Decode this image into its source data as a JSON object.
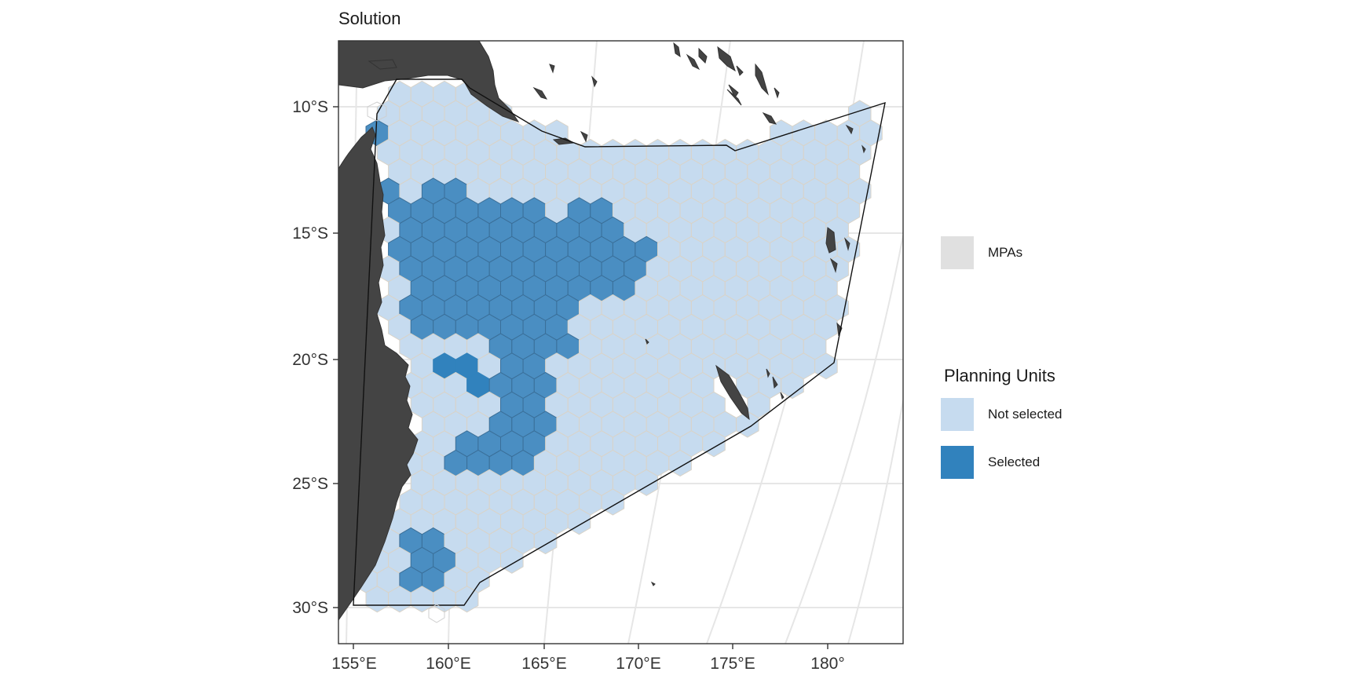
{
  "plot": {
    "title": "Solution",
    "y_axis": {
      "ticks": [
        "10°S",
        "15°S",
        "20°S",
        "25°S",
        "30°S"
      ]
    },
    "x_axis": {
      "ticks": [
        "155°E",
        "160°E",
        "165°E",
        "170°E",
        "175°E",
        "180°"
      ]
    }
  },
  "legend": {
    "mpas": {
      "label": "MPAs",
      "color": "#e0e0e0"
    },
    "planning_units": {
      "title": "Planning Units",
      "items": [
        {
          "label": "Not selected",
          "color": "#c6dbef"
        },
        {
          "label": "Selected",
          "color": "#3182bd"
        }
      ]
    }
  },
  "colors": {
    "land": "#444444",
    "not_selected": "#c6dbef",
    "selected_cluster": "#4a8ec2",
    "selected_isolated": "#3182bd",
    "hex_stroke": "#d9d3c8",
    "graticule": "#e5e5e5"
  }
}
